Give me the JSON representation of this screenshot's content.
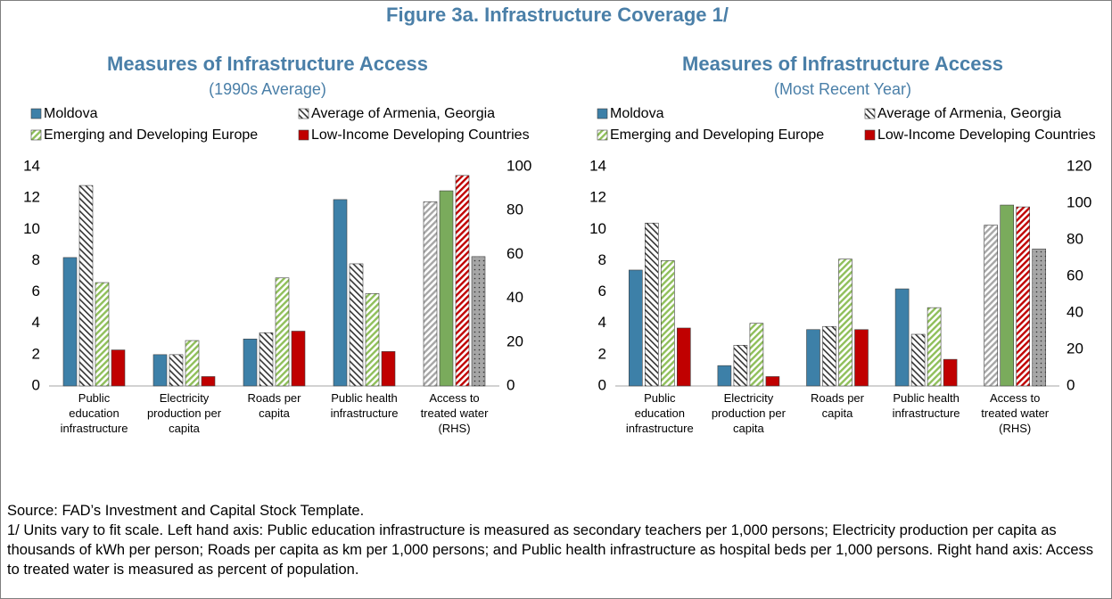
{
  "title": "Figure 3a. Infrastructure Coverage 1/",
  "chart_data": [
    {
      "type": "bar",
      "title": "Measures of Infrastructure Access",
      "subtitle": "(1990s Average)",
      "categories": [
        "Public education infrastructure",
        "Electricity production per capita",
        "Roads per capita",
        "Public health infrastructure",
        "Access to treated water (RHS)"
      ],
      "axis_by_category": [
        "y",
        "y",
        "y",
        "y",
        "y2"
      ],
      "ylim": [
        0,
        14
      ],
      "yticks": [
        0,
        2,
        4,
        6,
        8,
        10,
        12,
        14
      ],
      "y2lim": [
        0,
        100
      ],
      "y2ticks": [
        0,
        20,
        40,
        60,
        80,
        100
      ],
      "series": [
        {
          "name": "Moldova",
          "color": "#3d80a8",
          "pattern": "solid",
          "rhs_color": "#a6a6a6",
          "rhs_pattern": "stripes",
          "values": [
            8.2,
            2.0,
            3.0,
            11.9,
            84
          ]
        },
        {
          "name": "Average of Armenia, Georgia",
          "color": "#333333",
          "pattern": "backstripes",
          "rhs_color": "#7aab5c",
          "rhs_pattern": "solid",
          "values": [
            12.8,
            2.0,
            3.4,
            7.8,
            89
          ]
        },
        {
          "name": "Emerging and Developing Europe",
          "color": "#8fbf5a",
          "pattern": "stripes",
          "rhs_color": "#c00000",
          "rhs_pattern": "stripes",
          "values": [
            6.6,
            2.9,
            6.9,
            5.9,
            96
          ]
        },
        {
          "name": "Low-Income Developing Countries",
          "color": "#c00000",
          "pattern": "solid",
          "rhs_color": "#a6a6a6",
          "rhs_pattern": "dots",
          "values": [
            2.3,
            0.6,
            3.5,
            2.2,
            59
          ]
        }
      ]
    },
    {
      "type": "bar",
      "title": "Measures of Infrastructure Access",
      "subtitle": "(Most Recent Year)",
      "categories": [
        "Public education infrastructure",
        "Electricity production per capita",
        "Roads per capita",
        "Public health infrastructure",
        "Access to treated water (RHS)"
      ],
      "axis_by_category": [
        "y",
        "y",
        "y",
        "y",
        "y2"
      ],
      "ylim": [
        0,
        14
      ],
      "yticks": [
        0,
        2,
        4,
        6,
        8,
        10,
        12,
        14
      ],
      "y2lim": [
        0,
        120
      ],
      "y2ticks": [
        0,
        20,
        40,
        60,
        80,
        100,
        120
      ],
      "series": [
        {
          "name": "Moldova",
          "color": "#3d80a8",
          "pattern": "solid",
          "rhs_color": "#a6a6a6",
          "rhs_pattern": "stripes",
          "values": [
            7.4,
            1.3,
            3.6,
            6.2,
            88
          ]
        },
        {
          "name": "Average of Armenia, Georgia",
          "color": "#333333",
          "pattern": "backstripes",
          "rhs_color": "#7aab5c",
          "rhs_pattern": "solid",
          "values": [
            10.4,
            2.6,
            3.8,
            3.3,
            99
          ]
        },
        {
          "name": "Emerging and Developing Europe",
          "color": "#8fbf5a",
          "pattern": "stripes",
          "rhs_color": "#c00000",
          "rhs_pattern": "stripes",
          "values": [
            8.0,
            4.0,
            8.1,
            5.0,
            98
          ]
        },
        {
          "name": "Low-Income Developing Countries",
          "color": "#c00000",
          "pattern": "solid",
          "rhs_color": "#a6a6a6",
          "rhs_pattern": "dots",
          "values": [
            3.7,
            0.6,
            3.6,
            1.7,
            75
          ]
        }
      ]
    }
  ],
  "source": "Source: FAD’s Investment and Capital Stock Template.",
  "note": "1/ Units vary to fit scale. Left hand axis: Public education infrastructure is measured as secondary teachers per 1,000 persons; Electricity production per capita as thousands of kWh per person; Roads per capita as km per 1,000 persons; and Public health infrastructure as hospital beds per 1,000 persons. Right hand axis: Access to treated water is measured as percent of population."
}
